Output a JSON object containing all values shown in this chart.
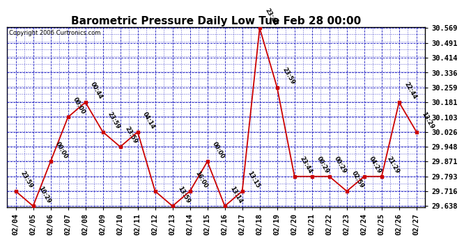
{
  "title": "Barometric Pressure Daily Low Tue Feb 28 00:00",
  "copyright": "Copyright 2006 Curtronics.com",
  "x_labels": [
    "02/04",
    "02/05",
    "02/06",
    "02/07",
    "02/08",
    "02/09",
    "02/10",
    "02/11",
    "02/12",
    "02/13",
    "02/14",
    "02/15",
    "02/16",
    "02/17",
    "02/18",
    "02/19",
    "02/20",
    "02/21",
    "02/22",
    "02/23",
    "02/24",
    "02/25",
    "02/26",
    "02/27"
  ],
  "y_values": [
    29.716,
    29.638,
    29.871,
    30.103,
    30.181,
    30.026,
    29.948,
    30.026,
    29.716,
    29.638,
    29.716,
    29.871,
    29.638,
    29.716,
    30.569,
    30.259,
    29.793,
    29.793,
    29.793,
    29.716,
    29.793,
    29.793,
    30.181,
    30.026
  ],
  "point_labels": [
    "23:59",
    "10:29",
    "00:00",
    "00:00",
    "00:44",
    "23:59",
    "23:59",
    "04:14",
    "",
    "13:59",
    "16:00",
    "00:00",
    "13:14",
    "13:15",
    "23:44",
    "23:59",
    "23:44",
    "00:29",
    "00:29",
    "02:59",
    "04:29",
    "21:29",
    "22:44",
    "13:29"
  ],
  "y_ticks": [
    29.638,
    29.716,
    29.793,
    29.871,
    29.948,
    30.026,
    30.103,
    30.181,
    30.259,
    30.336,
    30.414,
    30.491,
    30.569
  ],
  "y_min": 29.638,
  "y_max": 30.569,
  "line_color": "#cc0000",
  "marker_color": "#cc0000",
  "bg_color": "#ffffff",
  "grid_color": "#0000bb",
  "title_fontsize": 11,
  "tick_fontsize": 7.5,
  "copyright_fontsize": 6,
  "label_fontsize": 6
}
